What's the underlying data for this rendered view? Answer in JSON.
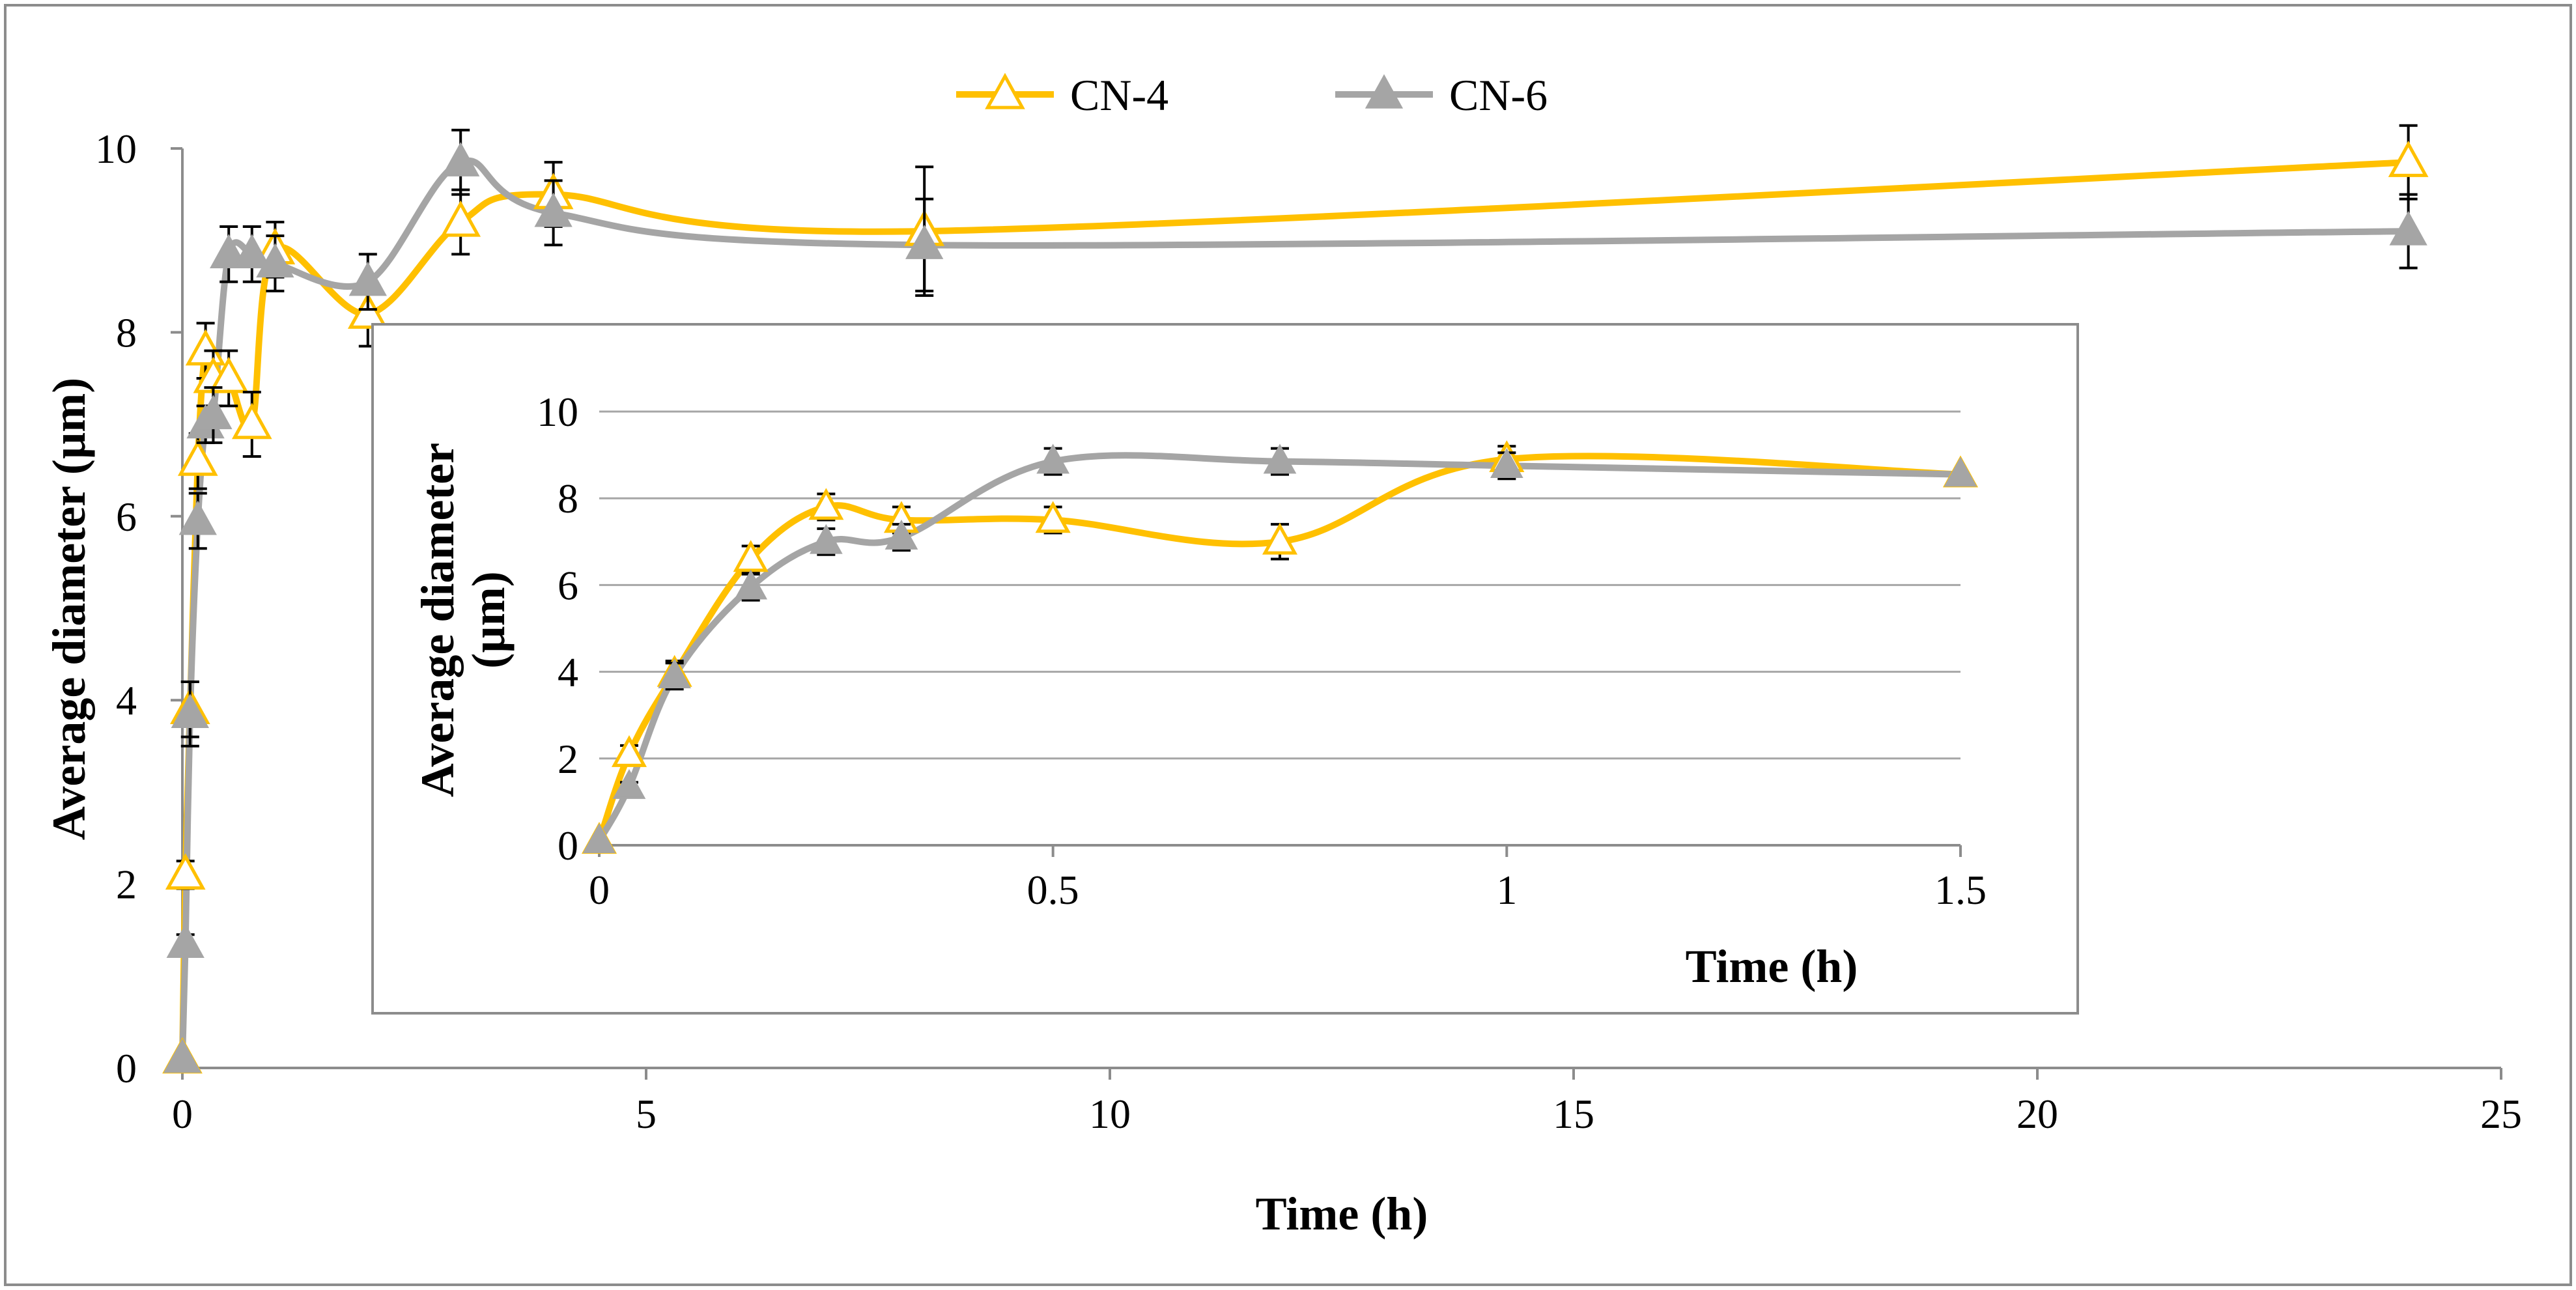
{
  "colors": {
    "cn4": "#FFC000",
    "cn6": "#A5A5A5",
    "errorbar": "#000000",
    "gridline": "#A6A6A6",
    "frame": "#8C8C8C",
    "axis": "#8C8C8C"
  },
  "chart_data": [
    {
      "id": "main",
      "type": "line",
      "title": "",
      "xlabel": "Time (h)",
      "ylabel": "Average diameter (µm)",
      "xlim": [
        0,
        25
      ],
      "ylim": [
        0,
        10
      ],
      "x_ticks": [
        "0",
        "5",
        "10",
        "15",
        "20",
        "25"
      ],
      "y_ticks": [
        "0",
        "2",
        "4",
        "6",
        "8",
        "10"
      ],
      "grid": false,
      "legend": {
        "position": "top-center",
        "entries": [
          "CN-4",
          "CN-6"
        ]
      },
      "series": [
        {
          "name": "CN-4",
          "marker": "open-triangle",
          "x": [
            0,
            0.033,
            0.083,
            0.167,
            0.25,
            0.333,
            0.5,
            0.75,
            1,
            2,
            3,
            4,
            8,
            24
          ],
          "y": [
            0.1,
            2.1,
            3.9,
            6.6,
            7.8,
            7.5,
            7.5,
            7.0,
            8.9,
            8.2,
            9.2,
            9.5,
            9.1,
            9.85
          ],
          "err": [
            0,
            0.15,
            0.3,
            0.3,
            0.3,
            0.3,
            0.3,
            0.35,
            0.3,
            0.35,
            0.35,
            0.35,
            0.7,
            0.4
          ]
        },
        {
          "name": "CN-6",
          "marker": "filled-triangle",
          "x": [
            0,
            0.033,
            0.083,
            0.167,
            0.25,
            0.333,
            0.5,
            0.75,
            1,
            2,
            3,
            4,
            8,
            24
          ],
          "y": [
            0.1,
            1.35,
            3.85,
            5.95,
            7.0,
            7.1,
            8.85,
            8.85,
            8.75,
            8.55,
            9.85,
            9.3,
            8.95,
            9.1
          ],
          "err": [
            0,
            0.1,
            0.35,
            0.3,
            0.2,
            0.3,
            0.3,
            0.3,
            0.3,
            0.3,
            0.35,
            0.35,
            0.5,
            0.4
          ]
        }
      ]
    },
    {
      "id": "inset",
      "type": "line",
      "title": "",
      "xlabel": "Time (h)",
      "ylabel": "Average diameter (µm)",
      "xlim": [
        0,
        1.5
      ],
      "ylim": [
        0,
        10
      ],
      "x_ticks": [
        "0",
        "0.5",
        "1",
        "1.5"
      ],
      "y_ticks": [
        "0",
        "2",
        "4",
        "6",
        "8",
        "10"
      ],
      "grid": true,
      "series": [
        {
          "name": "CN-4",
          "marker": "open-triangle",
          "x": [
            0,
            0.033,
            0.083,
            0.167,
            0.25,
            0.333,
            0.5,
            0.75,
            1,
            1.5
          ],
          "y": [
            0.1,
            2.1,
            3.95,
            6.6,
            7.8,
            7.5,
            7.5,
            7.0,
            8.9,
            8.55
          ],
          "err": [
            0,
            0.2,
            0.3,
            0.3,
            0.3,
            0.3,
            0.3,
            0.4,
            0.3,
            0
          ]
        },
        {
          "name": "CN-6",
          "marker": "filled-triangle",
          "x": [
            0,
            0.033,
            0.083,
            0.167,
            0.25,
            0.333,
            0.5,
            0.75,
            1,
            1.5
          ],
          "y": [
            0.1,
            1.35,
            3.9,
            5.95,
            7.0,
            7.1,
            8.85,
            8.85,
            8.75,
            8.55
          ],
          "err": [
            0,
            0.1,
            0.3,
            0.3,
            0.3,
            0.3,
            0.3,
            0.3,
            0.3,
            0
          ]
        }
      ]
    }
  ]
}
